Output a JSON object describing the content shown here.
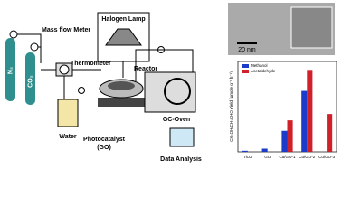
{
  "diagram": {
    "mass_flow_meter": "Mass flow Meter",
    "halogen_lamp": "Halogen Lamp",
    "thermometer": "Thermometer",
    "reactor": "Reactor",
    "n2": "N₂",
    "co2": "CO₂",
    "water": "Water",
    "photocatalyst": "Photocatalyst",
    "photocatalyst_sub": "(GO)",
    "gc_oven": "GC-Oven",
    "data_analysis": "Data Analysis",
    "scale_bar": "20 nm"
  },
  "chart_data": {
    "type": "bar",
    "y_label": "CH₃OH/CH₃CHO Yield (μmole g⁻¹ h⁻¹)",
    "categories": [
      "TiO2",
      "GO",
      "Cu/GO-1",
      "Cu/GO-2",
      "Cu/GO-3"
    ],
    "series": [
      {
        "name": "Methanol",
        "color": "#1a3cc8",
        "values": [
          0.05,
          0.15,
          1.0,
          2.9,
          0
        ]
      },
      {
        "name": "Acetaldehyde",
        "color": "#d0202a",
        "values": [
          0,
          0,
          1.5,
          3.9,
          1.8
        ]
      }
    ],
    "ylim": [
      0,
      4.3
    ]
  }
}
